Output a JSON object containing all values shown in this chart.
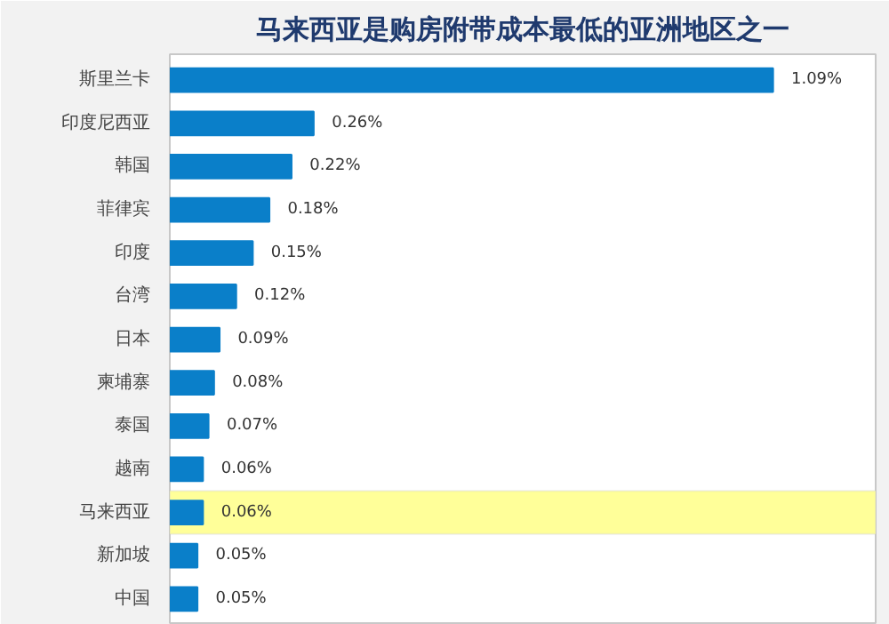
{
  "chart_data": {
    "type": "bar",
    "orientation": "horizontal",
    "title": "马来西亚是购房附带成本最低的亚洲地区之一",
    "categories": [
      "斯里兰卡",
      "印度尼西亚",
      "韩国",
      "菲律宾",
      "印度",
      "台湾",
      "日本",
      "柬埔寨",
      "泰国",
      "越南",
      "马来西亚",
      "新加坡",
      "中国"
    ],
    "values": [
      1.09,
      0.26,
      0.22,
      0.18,
      0.15,
      0.12,
      0.09,
      0.08,
      0.07,
      0.06,
      0.06,
      0.05,
      0.05
    ],
    "value_labels": [
      "1.09%",
      "0.26%",
      "0.22%",
      "0.18%",
      "0.15%",
      "0.12%",
      "0.09%",
      "0.08%",
      "0.07%",
      "0.06%",
      "0.06%",
      "0.05%",
      "0.05%"
    ],
    "color": "#0a7fc9",
    "bands": [
      {
        "axis": "y",
        "from": "马来西亚",
        "to": "马来西亚",
        "color": "#ffff99"
      }
    ],
    "grid": false
  }
}
